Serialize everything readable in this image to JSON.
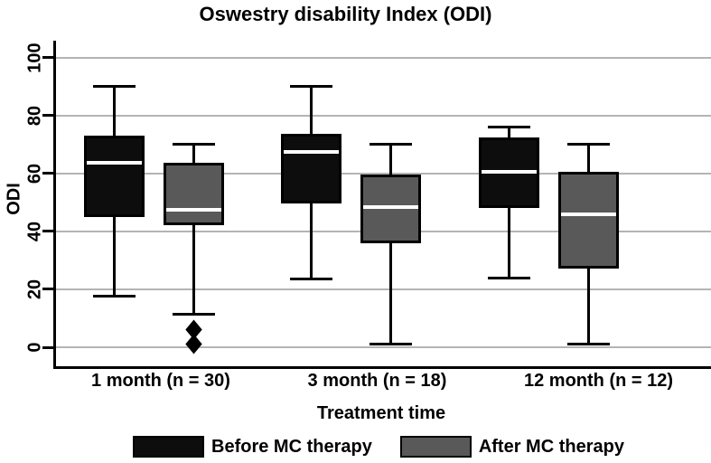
{
  "title": "Oswestry disability Index (ODI)",
  "y_axis": {
    "label": "ODI",
    "tick_labels": [
      "0",
      "20",
      "40",
      "60",
      "80",
      "100"
    ]
  },
  "x_axis": {
    "label": "Treatment time"
  },
  "chart_data": {
    "type": "boxplot",
    "title": "Oswestry disability Index (ODI)",
    "xlabel": "Treatment time",
    "ylabel": "ODI",
    "ylim": [
      0,
      100
    ],
    "y_ticks": [
      0,
      20,
      40,
      60,
      80,
      100
    ],
    "grid": true,
    "legend_position": "bottom",
    "categories": [
      "1 month (n = 30)",
      "3 month (n = 18)",
      "12 month (n = 12)"
    ],
    "series": [
      {
        "name": "Before MC therapy",
        "color": "#0d0d0d",
        "boxes": [
          {
            "whisker_low": 17.5,
            "q1": 45,
            "median": 63.5,
            "q3": 73,
            "whisker_high": 90,
            "outliers": []
          },
          {
            "whisker_low": 23.5,
            "q1": 49.5,
            "median": 67.5,
            "q3": 73.5,
            "whisker_high": 90,
            "outliers": []
          },
          {
            "whisker_low": 24,
            "q1": 48,
            "median": 60.5,
            "q3": 72.5,
            "whisker_high": 76,
            "outliers": []
          }
        ]
      },
      {
        "name": "After MC therapy",
        "color": "#595959",
        "boxes": [
          {
            "whisker_low": 11.5,
            "q1": 42,
            "median": 47.5,
            "q3": 63.5,
            "whisker_high": 70,
            "outliers": [
              6,
              1
            ]
          },
          {
            "whisker_low": 1,
            "q1": 36,
            "median": 48.5,
            "q3": 59.5,
            "whisker_high": 70,
            "outliers": []
          },
          {
            "whisker_low": 1,
            "q1": 27,
            "median": 46,
            "q3": 60.5,
            "whisker_high": 70,
            "outliers": []
          }
        ]
      }
    ],
    "box_border_color": "#000000",
    "median_line_color": "#ffffff",
    "gridline_color": "#b4b4b4"
  }
}
